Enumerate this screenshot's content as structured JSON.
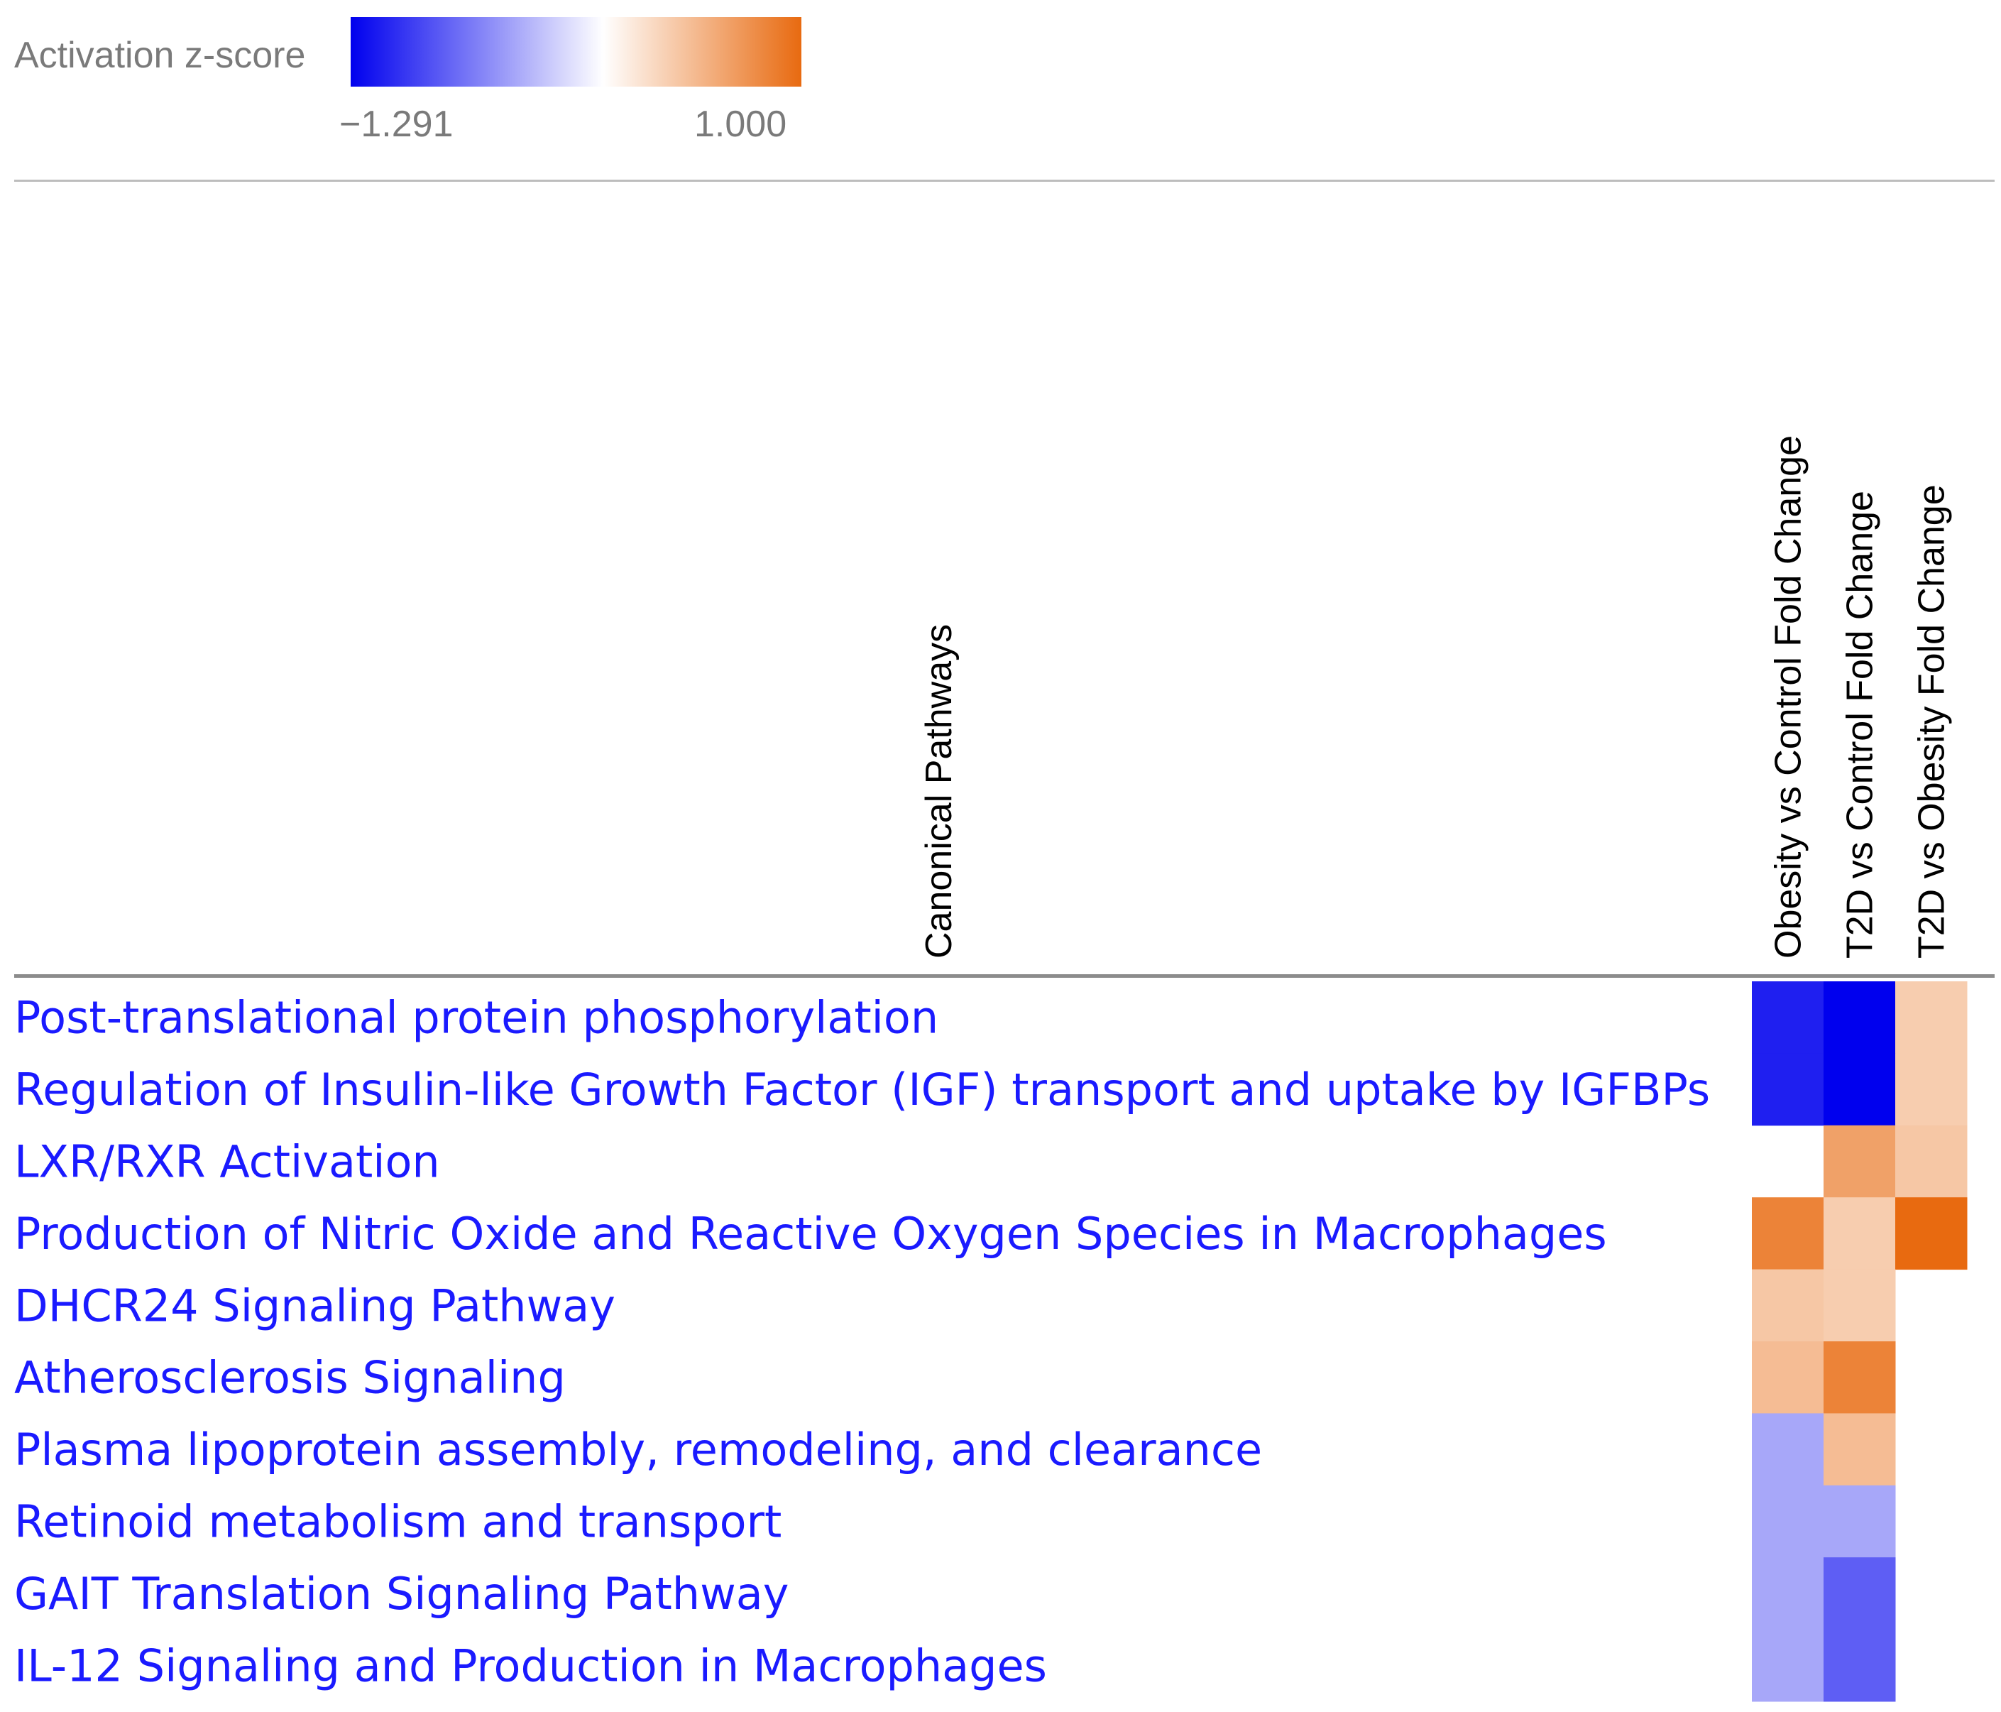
{
  "legend": {
    "title": "Activation z-score",
    "min_label": "−1.291",
    "max_label": "1.000",
    "colors": {
      "negative": "#0000ee",
      "neutral": "#ffffff",
      "positive": "#e86a10"
    }
  },
  "chart_data": {
    "type": "heatmap",
    "row_axis_label": "Canonical Pathways",
    "columns": [
      "Obesity vs Control Fold Change",
      "T2D vs Control Fold Change",
      "T2D vs Obesity Fold Change"
    ],
    "rows": [
      "Post-translational protein phosphorylation",
      "Regulation of Insulin-like Growth Factor (IGF) transport and uptake by IGFBPs",
      "LXR/RXR Activation",
      "Production of Nitric Oxide and Reactive Oxygen Species in Macrophages",
      "DHCR24 Signaling Pathway",
      "Atherosclerosis Signaling",
      "Plasma lipoprotein assembly, remodeling, and clearance",
      "Retinoid metabolism and transport",
      "GAIT Translation Signaling Pathway",
      "IL-12 Signaling and Production in Macrophages"
    ],
    "values": [
      [
        -1.134,
        -1.291,
        0.333
      ],
      [
        -1.134,
        -1.291,
        0.333
      ],
      [
        null,
        0.632,
        0.378
      ],
      [
        0.832,
        0.333,
        1.0
      ],
      [
        0.378,
        0.333,
        null
      ],
      [
        0.447,
        0.832,
        null
      ],
      [
        -0.447,
        0.447,
        null
      ],
      [
        -0.447,
        -0.447,
        null
      ],
      [
        -0.447,
        -0.816,
        null
      ],
      [
        -0.447,
        -0.816,
        null
      ]
    ],
    "zlim": [
      -1.291,
      1.0
    ],
    "legend_position": "top-left"
  }
}
